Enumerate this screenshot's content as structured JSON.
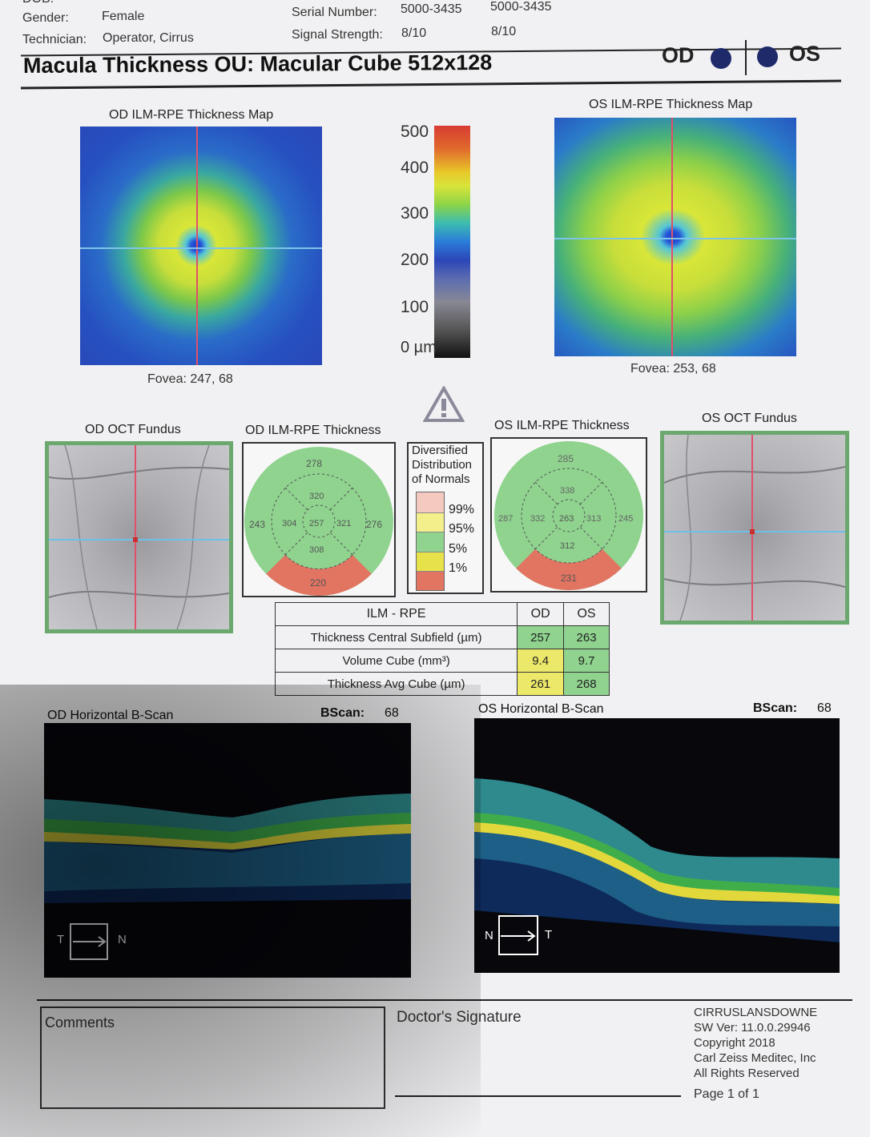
{
  "header": {
    "dob_label": "DOB:",
    "gender_label": "Gender:",
    "gender_value": "Female",
    "technician_label": "Technician:",
    "technician_value": "Operator, Cirrus",
    "serial_label": "Serial Number:",
    "serial_od": "5000-3435",
    "serial_os": "5000-3435",
    "signal_label": "Signal Strength:",
    "signal_od": "8/10",
    "signal_os": "8/10"
  },
  "title": "Macula Thickness OU: Macular Cube 512x128",
  "eye_tags": {
    "od": "OD",
    "os": "OS"
  },
  "od_map": {
    "title": "OD ILM-RPE Thickness Map",
    "fovea": "Fovea: 247, 68"
  },
  "os_map": {
    "title": "OS ILM-RPE Thickness Map",
    "fovea": "Fovea: 253, 68"
  },
  "color_scale": {
    "ticks": [
      "500",
      "400",
      "300",
      "200",
      "100",
      "0 µm"
    ]
  },
  "warning_icon": "warning-triangle-icon",
  "od_fundus": {
    "title": "OD OCT Fundus"
  },
  "os_fundus": {
    "title": "OS OCT Fundus"
  },
  "od_etdrs": {
    "title": "OD ILM-RPE Thickness",
    "superior_outer": "278",
    "superior_inner": "320",
    "temporal_outer": "243",
    "temporal_inner": "304",
    "center": "257",
    "nasal_inner": "321",
    "nasal_outer": "276",
    "inferior_inner": "308",
    "inferior_outer": "220"
  },
  "os_etdrs": {
    "title": "OS ILM-RPE Thickness",
    "superior_outer": "285",
    "superior_inner": "338",
    "nasal_outer": "287",
    "nasal_inner": "332",
    "center": "263",
    "temporal_inner": "313",
    "temporal_outer": "245",
    "inferior_inner": "312",
    "inferior_outer": "231"
  },
  "normals_legend": {
    "title_lines": [
      "Diversified",
      "Distribution",
      "of Normals"
    ],
    "labels": [
      "99%",
      "95%",
      "5%",
      "1%"
    ],
    "colors": [
      "#f4c9c0",
      "#f3f08c",
      "#8fd38f",
      "#e8e24a",
      "#e27462"
    ]
  },
  "summary_table": {
    "header": [
      "ILM - RPE",
      "OD",
      "OS"
    ],
    "rows": [
      {
        "label": "Thickness Central Subfield (µm)",
        "od": "257",
        "os": "263"
      },
      {
        "label": "Volume Cube (mm³)",
        "od": "9.4",
        "os": "9.7"
      },
      {
        "label": "Thickness Avg Cube (µm)",
        "od": "261",
        "os": "268"
      }
    ]
  },
  "od_bscan": {
    "title": "OD Horizontal B-Scan",
    "bscan_label": "BScan:",
    "bscan_value": "68",
    "dir_left": "T",
    "dir_right": "N"
  },
  "os_bscan": {
    "title": "OS Horizontal B-Scan",
    "bscan_label": "BScan:",
    "bscan_value": "68",
    "dir_left": "N",
    "dir_right": "T"
  },
  "footer": {
    "comments": "Comments",
    "signature": "Doctor's Signature",
    "site": "CIRRUSLANSDOWNE",
    "sw_ver": "SW Ver: 11.0.0.29946",
    "copyright": "Copyright 2018",
    "company": "Carl Zeiss Meditec, Inc",
    "rights": "All Rights Reserved",
    "page": "Page 1 of 1"
  },
  "colors": {
    "etdrs_green": "#8fd38f",
    "etdrs_red": "#e27462",
    "cell_yellow": "#ece86a",
    "eye_dot": "#1f2a6b"
  }
}
